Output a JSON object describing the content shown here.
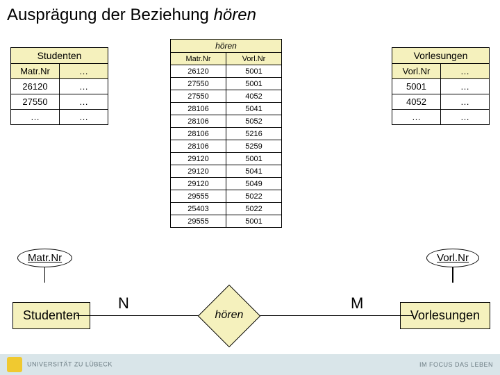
{
  "title_prefix": "Ausprägung der Beziehung ",
  "title_italic": "hören",
  "tables": {
    "studenten": {
      "title": "Studenten",
      "headers": [
        "Matr.Nr",
        "…"
      ],
      "rows": [
        [
          "26120",
          "…"
        ],
        [
          "27550",
          "…"
        ],
        [
          "…",
          "…"
        ]
      ]
    },
    "hoeren": {
      "title": "hören",
      "headers": [
        "Matr.Nr",
        "Vorl.Nr"
      ],
      "rows": [
        [
          "26120",
          "5001"
        ],
        [
          "27550",
          "5001"
        ],
        [
          "27550",
          "4052"
        ],
        [
          "28106",
          "5041"
        ],
        [
          "28106",
          "5052"
        ],
        [
          "28106",
          "5216"
        ],
        [
          "28106",
          "5259"
        ],
        [
          "29120",
          "5001"
        ],
        [
          "29120",
          "5041"
        ],
        [
          "29120",
          "5049"
        ],
        [
          "29555",
          "5022"
        ],
        [
          "25403",
          "5022"
        ],
        [
          "29555",
          "5001"
        ]
      ]
    },
    "vorlesungen": {
      "title": "Vorlesungen",
      "headers": [
        "Vorl.Nr",
        "…"
      ],
      "rows": [
        [
          "5001",
          "…"
        ],
        [
          "4052",
          "…"
        ],
        [
          "…",
          "…"
        ]
      ]
    }
  },
  "er": {
    "attr_left": "Matr.Nr",
    "attr_right": "Vorl.Nr",
    "entity_left": "Studenten",
    "entity_right": "Vorlesungen",
    "relationship": "hören",
    "card_left": "N",
    "card_right": "M"
  },
  "footer": {
    "left": "UNIVERSITÄT ZU LÜBECK",
    "right": "IM FOCUS DAS LEBEN"
  },
  "colors": {
    "header_bg": "#f5f1bd",
    "footer_bg": "#d9e5e9"
  }
}
